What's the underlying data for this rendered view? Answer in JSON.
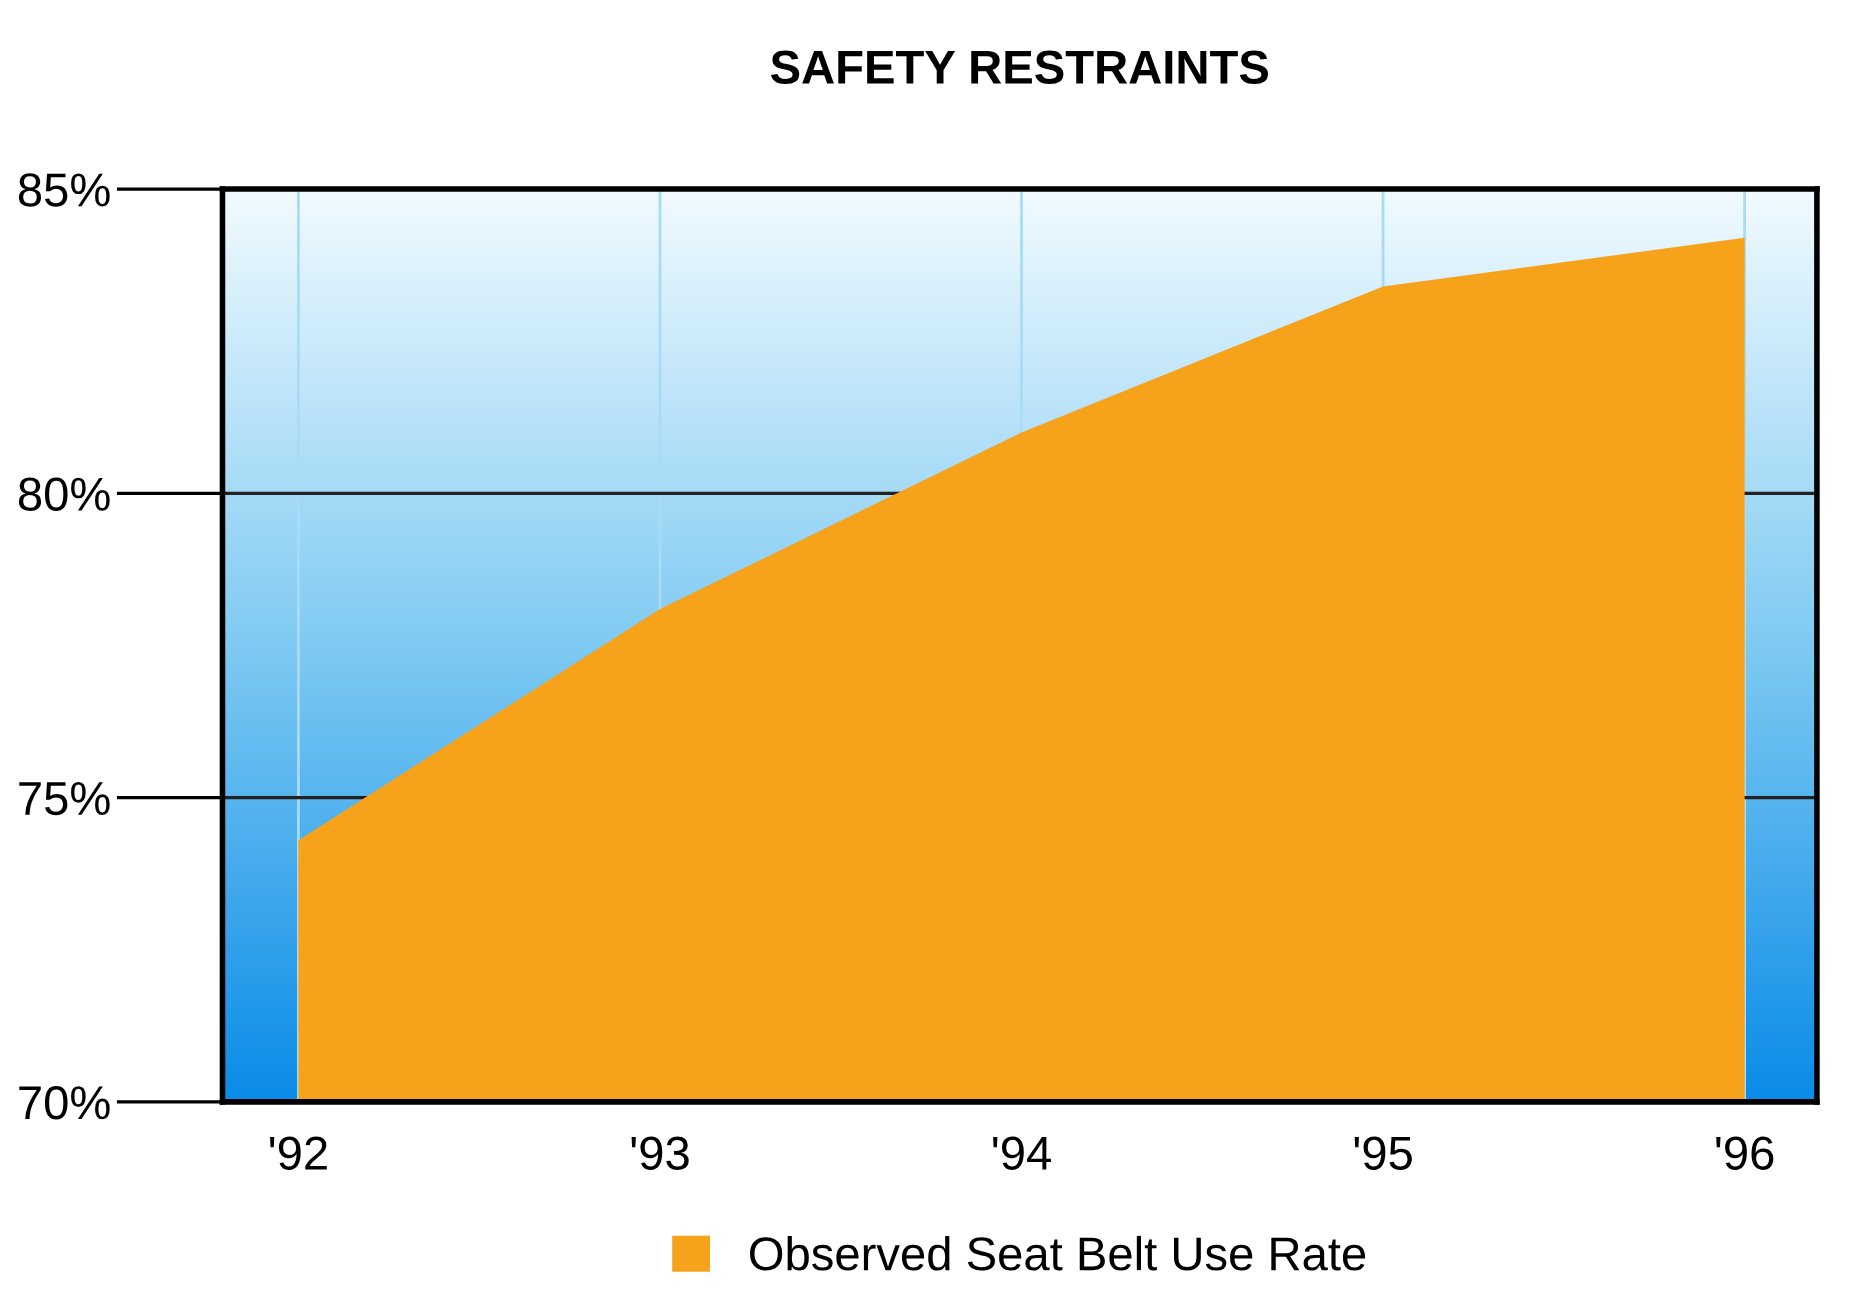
{
  "chart_data": {
    "type": "area",
    "title": "SAFETY RESTRAINTS",
    "categories": [
      "'92",
      "'93",
      "'94",
      "'95",
      "'96"
    ],
    "series": [
      {
        "name": "Observed Seat Belt Use Rate",
        "color": "#f7a21b",
        "values": [
          74.3,
          78.1,
          81.0,
          83.4,
          84.2
        ]
      }
    ],
    "ylim": [
      70,
      85
    ],
    "yticks": [
      {
        "value": 70,
        "label": "70%"
      },
      {
        "value": 75,
        "label": "75%"
      },
      {
        "value": 80,
        "label": "80%"
      },
      {
        "value": 85,
        "label": "85%"
      }
    ],
    "grid": true,
    "legend": "bottom"
  }
}
